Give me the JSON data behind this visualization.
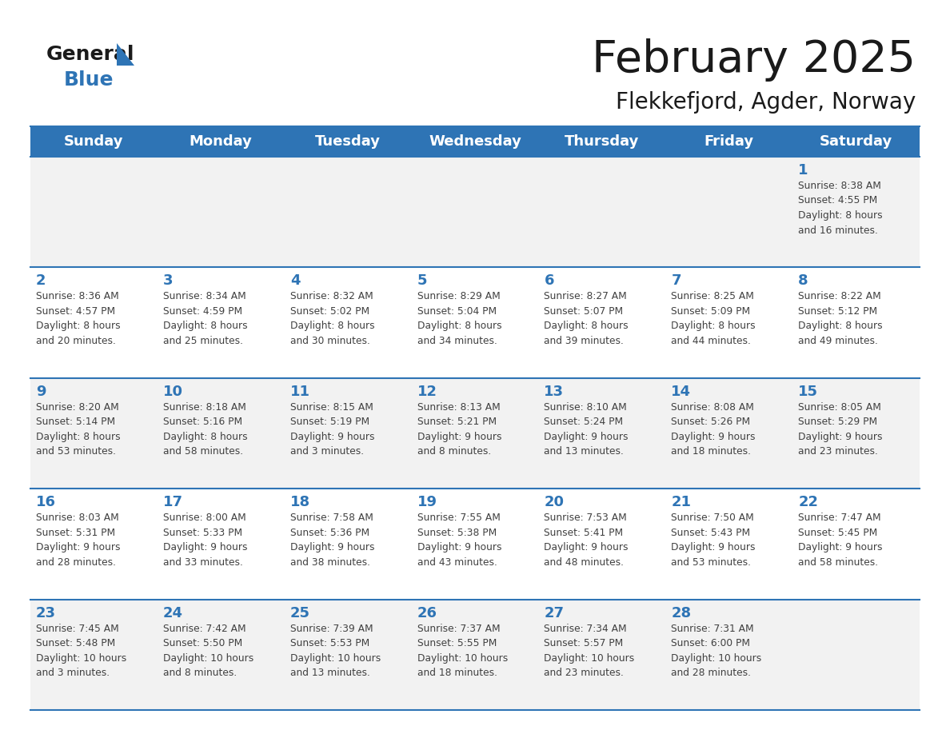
{
  "title": "February 2025",
  "subtitle": "Flekkefjord, Agder, Norway",
  "header_bg": "#2e74b5",
  "header_text_color": "#ffffff",
  "cell_bg_odd": "#f2f2f2",
  "cell_bg_even": "#ffffff",
  "day_number_color": "#2e74b5",
  "info_text_color": "#404040",
  "grid_color": "#2e74b5",
  "days_of_week": [
    "Sunday",
    "Monday",
    "Tuesday",
    "Wednesday",
    "Thursday",
    "Friday",
    "Saturday"
  ],
  "weeks": [
    [
      {
        "day": null,
        "info": null
      },
      {
        "day": null,
        "info": null
      },
      {
        "day": null,
        "info": null
      },
      {
        "day": null,
        "info": null
      },
      {
        "day": null,
        "info": null
      },
      {
        "day": null,
        "info": null
      },
      {
        "day": 1,
        "info": "Sunrise: 8:38 AM\nSunset: 4:55 PM\nDaylight: 8 hours\nand 16 minutes."
      }
    ],
    [
      {
        "day": 2,
        "info": "Sunrise: 8:36 AM\nSunset: 4:57 PM\nDaylight: 8 hours\nand 20 minutes."
      },
      {
        "day": 3,
        "info": "Sunrise: 8:34 AM\nSunset: 4:59 PM\nDaylight: 8 hours\nand 25 minutes."
      },
      {
        "day": 4,
        "info": "Sunrise: 8:32 AM\nSunset: 5:02 PM\nDaylight: 8 hours\nand 30 minutes."
      },
      {
        "day": 5,
        "info": "Sunrise: 8:29 AM\nSunset: 5:04 PM\nDaylight: 8 hours\nand 34 minutes."
      },
      {
        "day": 6,
        "info": "Sunrise: 8:27 AM\nSunset: 5:07 PM\nDaylight: 8 hours\nand 39 minutes."
      },
      {
        "day": 7,
        "info": "Sunrise: 8:25 AM\nSunset: 5:09 PM\nDaylight: 8 hours\nand 44 minutes."
      },
      {
        "day": 8,
        "info": "Sunrise: 8:22 AM\nSunset: 5:12 PM\nDaylight: 8 hours\nand 49 minutes."
      }
    ],
    [
      {
        "day": 9,
        "info": "Sunrise: 8:20 AM\nSunset: 5:14 PM\nDaylight: 8 hours\nand 53 minutes."
      },
      {
        "day": 10,
        "info": "Sunrise: 8:18 AM\nSunset: 5:16 PM\nDaylight: 8 hours\nand 58 minutes."
      },
      {
        "day": 11,
        "info": "Sunrise: 8:15 AM\nSunset: 5:19 PM\nDaylight: 9 hours\nand 3 minutes."
      },
      {
        "day": 12,
        "info": "Sunrise: 8:13 AM\nSunset: 5:21 PM\nDaylight: 9 hours\nand 8 minutes."
      },
      {
        "day": 13,
        "info": "Sunrise: 8:10 AM\nSunset: 5:24 PM\nDaylight: 9 hours\nand 13 minutes."
      },
      {
        "day": 14,
        "info": "Sunrise: 8:08 AM\nSunset: 5:26 PM\nDaylight: 9 hours\nand 18 minutes."
      },
      {
        "day": 15,
        "info": "Sunrise: 8:05 AM\nSunset: 5:29 PM\nDaylight: 9 hours\nand 23 minutes."
      }
    ],
    [
      {
        "day": 16,
        "info": "Sunrise: 8:03 AM\nSunset: 5:31 PM\nDaylight: 9 hours\nand 28 minutes."
      },
      {
        "day": 17,
        "info": "Sunrise: 8:00 AM\nSunset: 5:33 PM\nDaylight: 9 hours\nand 33 minutes."
      },
      {
        "day": 18,
        "info": "Sunrise: 7:58 AM\nSunset: 5:36 PM\nDaylight: 9 hours\nand 38 minutes."
      },
      {
        "day": 19,
        "info": "Sunrise: 7:55 AM\nSunset: 5:38 PM\nDaylight: 9 hours\nand 43 minutes."
      },
      {
        "day": 20,
        "info": "Sunrise: 7:53 AM\nSunset: 5:41 PM\nDaylight: 9 hours\nand 48 minutes."
      },
      {
        "day": 21,
        "info": "Sunrise: 7:50 AM\nSunset: 5:43 PM\nDaylight: 9 hours\nand 53 minutes."
      },
      {
        "day": 22,
        "info": "Sunrise: 7:47 AM\nSunset: 5:45 PM\nDaylight: 9 hours\nand 58 minutes."
      }
    ],
    [
      {
        "day": 23,
        "info": "Sunrise: 7:45 AM\nSunset: 5:48 PM\nDaylight: 10 hours\nand 3 minutes."
      },
      {
        "day": 24,
        "info": "Sunrise: 7:42 AM\nSunset: 5:50 PM\nDaylight: 10 hours\nand 8 minutes."
      },
      {
        "day": 25,
        "info": "Sunrise: 7:39 AM\nSunset: 5:53 PM\nDaylight: 10 hours\nand 13 minutes."
      },
      {
        "day": 26,
        "info": "Sunrise: 7:37 AM\nSunset: 5:55 PM\nDaylight: 10 hours\nand 18 minutes."
      },
      {
        "day": 27,
        "info": "Sunrise: 7:34 AM\nSunset: 5:57 PM\nDaylight: 10 hours\nand 23 minutes."
      },
      {
        "day": 28,
        "info": "Sunrise: 7:31 AM\nSunset: 6:00 PM\nDaylight: 10 hours\nand 28 minutes."
      },
      {
        "day": null,
        "info": null
      }
    ]
  ]
}
